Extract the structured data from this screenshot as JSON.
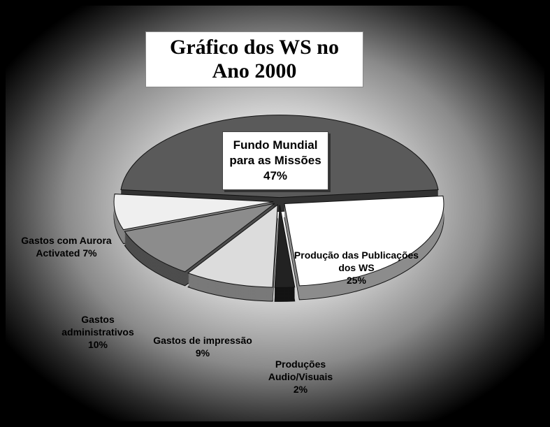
{
  "chart_data": {
    "type": "pie",
    "title": "Gráfico dos WS no Ano 2000",
    "categories": [
      "Fundo Mundial para as Missões",
      "Produção das Publicações dos WS",
      "Produções Audio/Visuais",
      "Gastos de impressão",
      "Gastos administrativos",
      "Gastos com Aurora Activated"
    ],
    "values": [
      47,
      25,
      2,
      9,
      10,
      7
    ],
    "value_labels": [
      "47%",
      "25%",
      "2%",
      "9%",
      "10%",
      "7%"
    ],
    "colors": [
      "#5a5a5a",
      "#ffffff",
      "#222222",
      "#dcdcdc",
      "#8c8c8c",
      "#efefef"
    ]
  }
}
